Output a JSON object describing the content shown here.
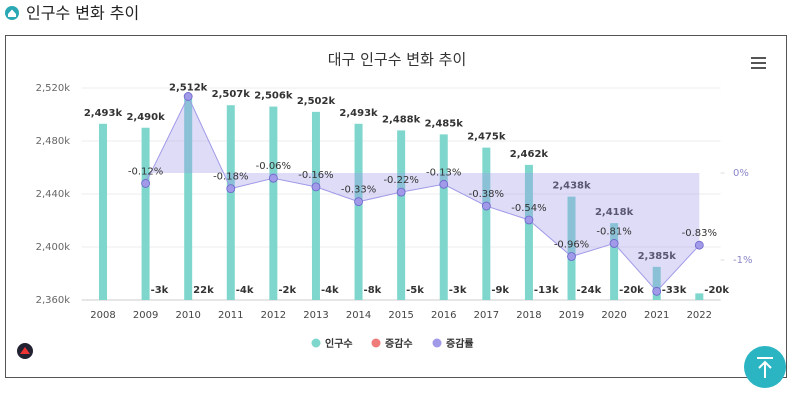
{
  "header": {
    "title": "인구수 변화 추이"
  },
  "chart_data": {
    "type": "bar",
    "title": "대구 인구수 변화 추이",
    "categories": [
      "2008",
      "2009",
      "2010",
      "2011",
      "2012",
      "2013",
      "2014",
      "2015",
      "2016",
      "2017",
      "2018",
      "2019",
      "2020",
      "2021",
      "2022"
    ],
    "series": [
      {
        "name": "인구수",
        "color": "#7fd6cd",
        "values": [
          2493,
          2490,
          2512,
          2507,
          2506,
          2502,
          2493,
          2488,
          2485,
          2475,
          2462,
          2438,
          2418,
          2385,
          2365
        ],
        "value_labels": [
          "2,493k",
          "2,490k",
          "2,512k",
          "2,507k",
          "2,506k",
          "2,502k",
          "2,493k",
          "2,488k",
          "2,485k",
          "2,475k",
          "2,462k",
          "2,438k",
          "2,418k",
          "2,385k",
          null
        ]
      },
      {
        "name": "증감수",
        "color": "#f07b7b",
        "values": [
          null,
          -3,
          22,
          -4,
          -2,
          -4,
          -8,
          -5,
          -3,
          -9,
          -13,
          -24,
          -20,
          -33,
          -20
        ],
        "value_labels": [
          null,
          "-3k",
          "22k",
          "-4k",
          "-2k",
          "-4k",
          "-8k",
          "-5k",
          "-3k",
          "-9k",
          "-13k",
          "-24k",
          "-20k",
          "-33k",
          "-20k"
        ]
      },
      {
        "name": "증감률",
        "color": "#a09ae8",
        "axis": "y2",
        "values": [
          null,
          -0.12,
          0.88,
          -0.18,
          -0.06,
          -0.16,
          -0.33,
          -0.22,
          -0.13,
          -0.38,
          -0.54,
          -0.96,
          -0.81,
          -1.36,
          -0.83
        ],
        "value_labels": [
          null,
          "-0.12%",
          null,
          "-0.18%",
          "-0.06%",
          "-0.16%",
          "-0.33%",
          "-0.22%",
          "-0.13%",
          "-0.38%",
          "-0.54%",
          "-0.96%",
          "-0.81%",
          null,
          "-0.83%"
        ]
      }
    ],
    "ylim": [
      2360,
      2520
    ],
    "yticks": [
      {
        "value": 2360,
        "label": "2,360k"
      },
      {
        "value": 2400,
        "label": "2,400k"
      },
      {
        "value": 2440,
        "label": "2,440k"
      },
      {
        "value": 2480,
        "label": "2,480k"
      },
      {
        "value": 2520,
        "label": "2,520k"
      }
    ],
    "y2lim": [
      -1.46,
      0.977
    ],
    "y2ticks": [
      {
        "value": 0,
        "label": "0%"
      },
      {
        "value": -1,
        "label": "-1%"
      }
    ],
    "grid": true,
    "legend": "bottom"
  }
}
